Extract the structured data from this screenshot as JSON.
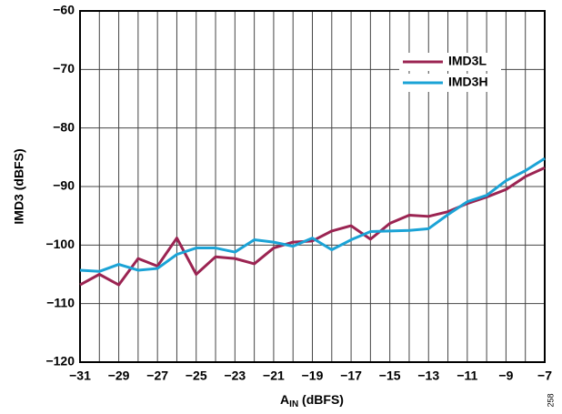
{
  "chart_data": {
    "type": "line",
    "ylabel": "IMD3 (dBFS)",
    "xlabel_main": "A",
    "xlabel_sub": "IN",
    "xlabel_rest": " (dBFS)",
    "note": "258",
    "x": [
      -31,
      -30,
      -29,
      -28,
      -27,
      -26,
      -25,
      -24,
      -23,
      -22,
      -21,
      -20,
      -19,
      -18,
      -17,
      -16,
      -15,
      -14,
      -13,
      -12,
      -11,
      -10,
      -9,
      -8,
      -7
    ],
    "series": [
      {
        "name": "IMD3L",
        "color": "#9b2452",
        "values": [
          -106.8,
          -105,
          -106.8,
          -102.3,
          -103.6,
          -98.8,
          -105,
          -102,
          -102.3,
          -103.2,
          -100.5,
          -99.5,
          -99.3,
          -97.6,
          -96.7,
          -99,
          -96.3,
          -94.9,
          -95.1,
          -94.3,
          -92.9,
          -91.8,
          -90.5,
          -88.3,
          -86.8
        ]
      },
      {
        "name": "IMD3H",
        "color": "#1ba3d6",
        "values": [
          -104.3,
          -104.5,
          -103.3,
          -104.3,
          -104,
          -101.6,
          -100.5,
          -100.5,
          -101.2,
          -99.1,
          -99.5,
          -100.2,
          -98.8,
          -100.8,
          -99.1,
          -97.7,
          -97.6,
          -97.5,
          -97.2,
          -94.8,
          -92.6,
          -91.5,
          -89,
          -87.3,
          -85.2
        ]
      }
    ],
    "xlim": [
      -31,
      -7
    ],
    "xticks": [
      {
        "value": -31,
        "label": "−31"
      },
      {
        "value": -29,
        "label": "−29"
      },
      {
        "value": -27,
        "label": "−27"
      },
      {
        "value": -25,
        "label": "−25"
      },
      {
        "value": -23,
        "label": "−23"
      },
      {
        "value": -21,
        "label": "−21"
      },
      {
        "value": -19,
        "label": "−19"
      },
      {
        "value": -17,
        "label": "−17"
      },
      {
        "value": -15,
        "label": "−15"
      },
      {
        "value": -13,
        "label": "−13"
      },
      {
        "value": -11,
        "label": "−11"
      },
      {
        "value": -9,
        "label": "−9"
      },
      {
        "value": -7,
        "label": "−7"
      }
    ],
    "xminorticks": [
      -30,
      -28,
      -26,
      -24,
      -22,
      -20,
      -18,
      -16,
      -14,
      -12,
      -10,
      -8
    ],
    "ylim": [
      -120,
      -60
    ],
    "yticks": [
      {
        "value": -120,
        "label": "−120"
      },
      {
        "value": -110,
        "label": "−110"
      },
      {
        "value": -100,
        "label": "−100"
      },
      {
        "value": -90,
        "label": "−90"
      },
      {
        "value": -80,
        "label": "−80"
      },
      {
        "value": -70,
        "label": "−70"
      },
      {
        "value": -60,
        "label": "−60"
      }
    ],
    "grid": true,
    "legend": "upper right"
  }
}
